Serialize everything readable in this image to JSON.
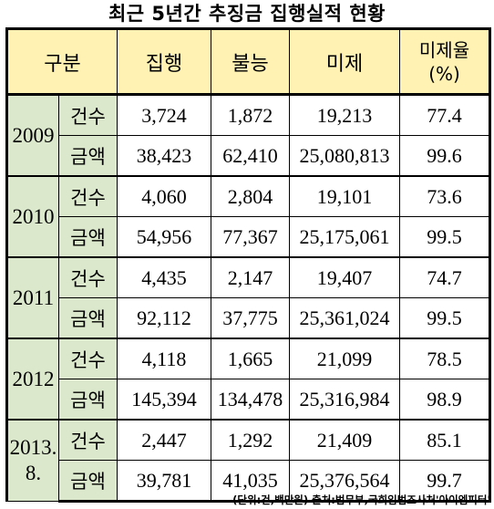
{
  "title": "최근 5년간 추징금 집행실적 현황",
  "headers": {
    "category": "구분",
    "executed": "집행",
    "impossible": "불능",
    "unexecuted": "미제",
    "rate_line1": "미제율",
    "rate_line2": "(%)"
  },
  "row_kinds": {
    "count": "건수",
    "amount": "금액"
  },
  "rows": [
    {
      "year": "2009",
      "year_line2": "",
      "count": {
        "executed": "3,724",
        "impossible": "1,872",
        "unexecuted": "19,213",
        "rate": "77.4"
      },
      "amount": {
        "executed": "38,423",
        "impossible": "62,410",
        "unexecuted": "25,080,813",
        "rate": "99.6"
      }
    },
    {
      "year": "2010",
      "year_line2": "",
      "count": {
        "executed": "4,060",
        "impossible": "2,804",
        "unexecuted": "19,101",
        "rate": "73.6"
      },
      "amount": {
        "executed": "54,956",
        "impossible": "77,367",
        "unexecuted": "25,175,061",
        "rate": "99.5"
      }
    },
    {
      "year": "2011",
      "year_line2": "",
      "count": {
        "executed": "4,435",
        "impossible": "2,147",
        "unexecuted": "19,407",
        "rate": "74.7"
      },
      "amount": {
        "executed": "92,112",
        "impossible": "37,775",
        "unexecuted": "25,361,024",
        "rate": "99.5"
      }
    },
    {
      "year": "2012",
      "year_line2": "",
      "count": {
        "executed": "4,118",
        "impossible": "1,665",
        "unexecuted": "21,099",
        "rate": "78.5"
      },
      "amount": {
        "executed": "145,394",
        "impossible": "134,478",
        "unexecuted": "25,316,984",
        "rate": "98.9"
      }
    },
    {
      "year": "2013.",
      "year_line2": "8.",
      "count": {
        "executed": "2,447",
        "impossible": "1,292",
        "unexecuted": "21,409",
        "rate": "85.1"
      },
      "amount": {
        "executed": "39,781",
        "impossible": "41,035",
        "unexecuted": "25,376,564",
        "rate": "99.7"
      }
    }
  ],
  "source": "(단위:건,백만원) 출처:법무부,국회입법조사처'아이엠피터'"
}
